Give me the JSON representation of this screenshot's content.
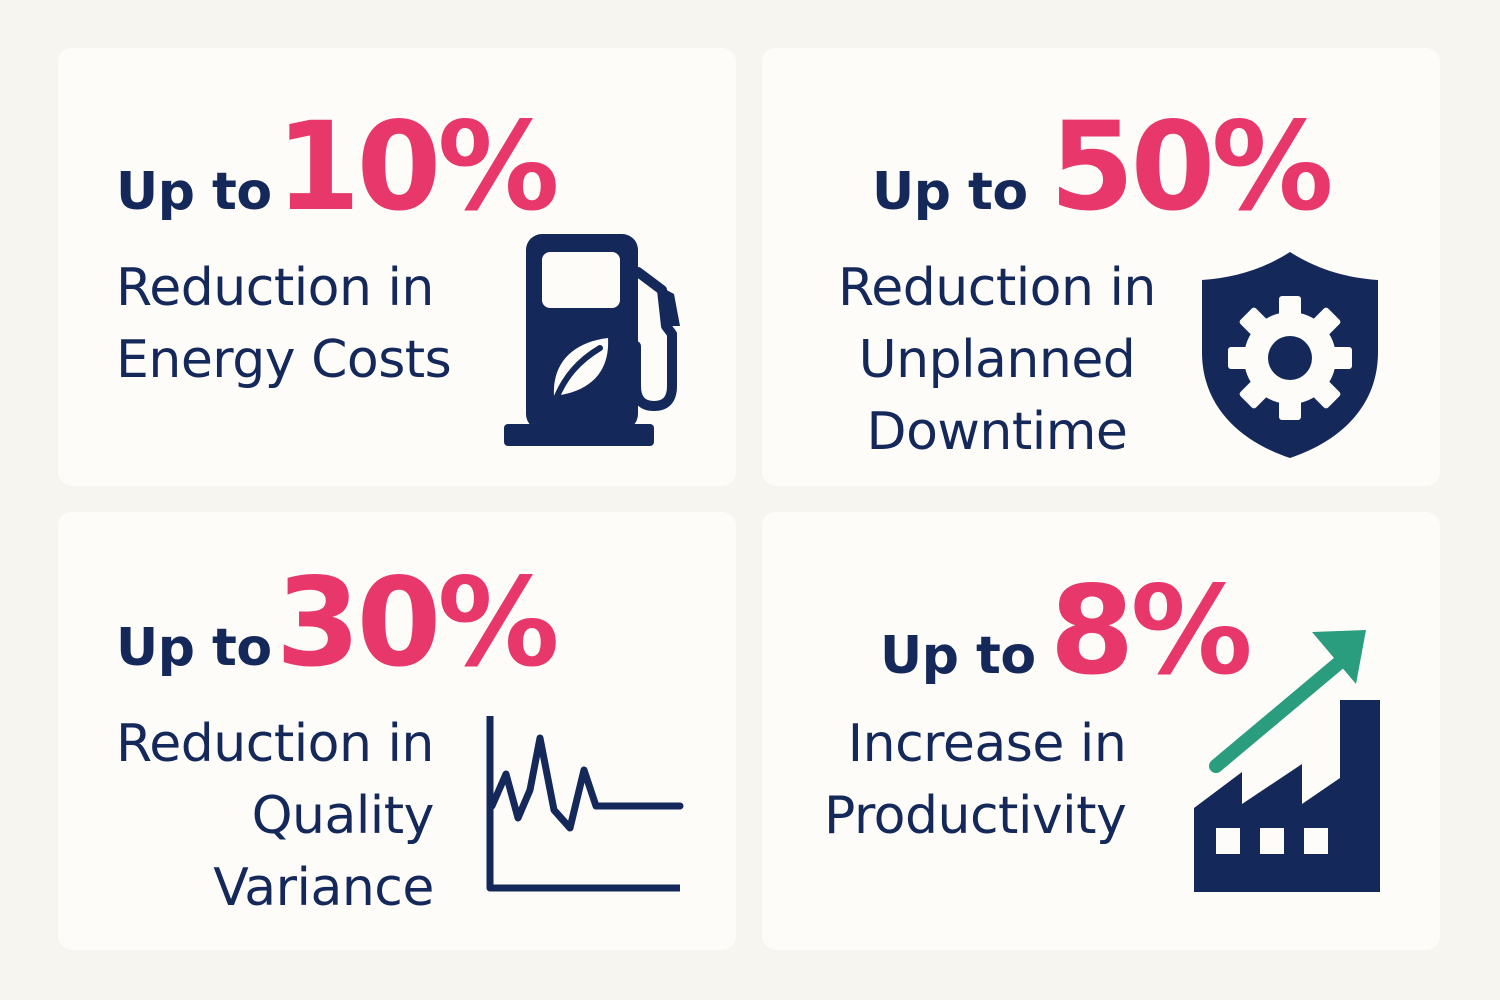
{
  "colors": {
    "background": "#f7f5f0",
    "card": "#fdfcf9",
    "navy": "#14285a",
    "accent_pink": "#e8386b",
    "accent_green": "#2a9d7f"
  },
  "stats": [
    {
      "prefix": "Up to",
      "value": "10%",
      "description_lines": [
        "Reduction in",
        "Energy Costs"
      ],
      "icon": "fuel-pump-leaf-icon"
    },
    {
      "prefix": "Up to",
      "value": "50%",
      "description_lines": [
        "Reduction in",
        "Unplanned",
        "Downtime"
      ],
      "icon": "shield-gear-icon"
    },
    {
      "prefix": "Up to",
      "value": "30%",
      "description_lines": [
        "Reduction in",
        "Quality",
        "Variance"
      ],
      "icon": "variance-line-chart-icon"
    },
    {
      "prefix": "Up to",
      "value": "8%",
      "description_lines": [
        "Increase in",
        "Productivity"
      ],
      "icon": "factory-growth-arrow-icon"
    }
  ]
}
